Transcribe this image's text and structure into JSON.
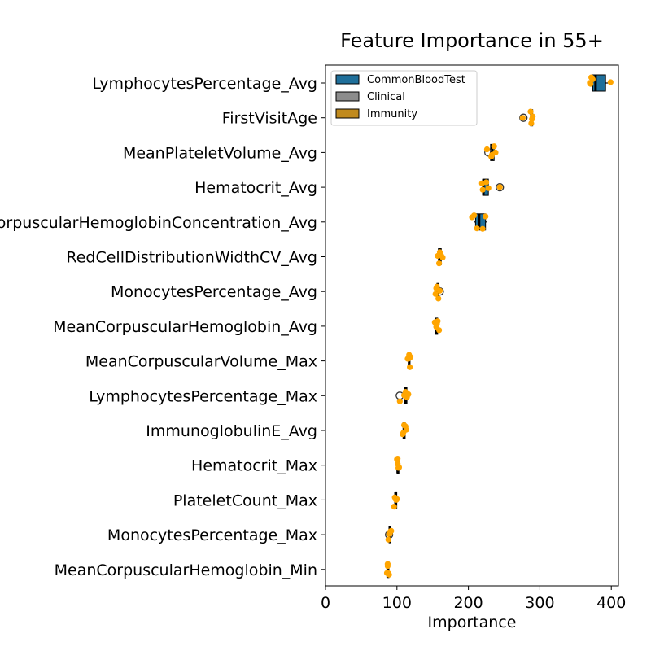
{
  "chart_data": {
    "type": "box",
    "title": "Feature Importance in 55+",
    "xlabel": "Importance",
    "ylabel": "",
    "xlim": [
      0,
      410
    ],
    "xticks": [
      0,
      100,
      200,
      300,
      400
    ],
    "grid": false,
    "legend": {
      "placement": "top-left",
      "entries": [
        {
          "name": "CommonBloodTest",
          "color": "#1f6f9a"
        },
        {
          "name": "Clinical",
          "color": "#8c8c8c"
        },
        {
          "name": "Immunity",
          "color": "#c08a1e"
        }
      ]
    },
    "point_color": "#ffa500",
    "features": [
      {
        "name": "LymphocytesPercentage_Avg",
        "group": "CommonBloodTest",
        "box": [
          372,
          374,
          378,
          392,
          400
        ],
        "points": [
          370,
          371,
          372,
          374,
          399
        ],
        "outliers": []
      },
      {
        "name": "FirstVisitAge",
        "group": "Clinical",
        "box": [
          286,
          287,
          288,
          290,
          291
        ],
        "points": [
          276,
          287,
          288,
          289,
          290
        ],
        "outliers": [
          277
        ]
      },
      {
        "name": "MeanPlateletVolume_Avg",
        "group": "CommonBloodTest",
        "box": [
          230,
          231,
          233,
          236,
          238
        ],
        "points": [
          226,
          232,
          233,
          236,
          238
        ],
        "outliers": [
          228
        ]
      },
      {
        "name": "Hematocrit_Avg",
        "group": "CommonBloodTest",
        "box": [
          219,
          220,
          221,
          228,
          230
        ],
        "points": [
          219,
          220,
          225,
          228,
          244
        ],
        "outliers": [
          244
        ]
      },
      {
        "name": "MeanCorpuscularHemoglobinConcentration_Avg",
        "group": "CommonBloodTest",
        "box": [
          208,
          210,
          215,
          224,
          226
        ],
        "points": [
          205,
          208,
          212,
          220,
          224
        ],
        "outliers": []
      },
      {
        "name": "RedCellDistributionWidthCV_Avg",
        "group": "CommonBloodTest",
        "box": [
          157,
          158,
          160,
          162,
          164
        ],
        "points": [
          157,
          159,
          160,
          162,
          164
        ],
        "outliers": []
      },
      {
        "name": "MonocytesPercentage_Avg",
        "group": "CommonBloodTest",
        "box": [
          155,
          156,
          157,
          158,
          160
        ],
        "points": [
          154,
          155,
          156,
          158,
          160
        ],
        "outliers": [
          160
        ]
      },
      {
        "name": "MeanCorpuscularHemoglobin_Avg",
        "group": "CommonBloodTest",
        "box": [
          153,
          154,
          155,
          157,
          159
        ],
        "points": [
          153,
          155,
          156,
          157,
          159
        ],
        "outliers": []
      },
      {
        "name": "MeanCorpuscularVolume_Max",
        "group": "CommonBloodTest",
        "box": [
          115,
          116,
          117,
          118,
          119
        ],
        "points": [
          115,
          116,
          117,
          118,
          119
        ],
        "outliers": []
      },
      {
        "name": "LymphocytesPercentage_Max",
        "group": "CommonBloodTest",
        "box": [
          110,
          111,
          112,
          114,
          116
        ],
        "points": [
          104,
          110,
          112,
          114,
          116
        ],
        "outliers": [
          104
        ]
      },
      {
        "name": "ImmunoglobulinE_Avg",
        "group": "Immunity",
        "box": [
          108,
          108.5,
          110,
          111.5,
          113
        ],
        "points": [
          108,
          109,
          110,
          112,
          113
        ],
        "outliers": []
      },
      {
        "name": "Hematocrit_Max",
        "group": "CommonBloodTest",
        "box": [
          100,
          100.5,
          101,
          101.5,
          102
        ],
        "points": [
          100,
          101,
          101,
          102,
          103
        ],
        "outliers": []
      },
      {
        "name": "PlateletCount_Max",
        "group": "CommonBloodTest",
        "box": [
          97,
          97.5,
          98,
          99,
          100
        ],
        "points": [
          96,
          97,
          98,
          99,
          100
        ],
        "outliers": []
      },
      {
        "name": "MonocytesPercentage_Max",
        "group": "CommonBloodTest",
        "box": [
          88,
          89,
          90,
          91,
          92
        ],
        "points": [
          88,
          89,
          90,
          91,
          92
        ],
        "outliers": [
          89
        ]
      },
      {
        "name": "MeanCorpuscularHemoglobin_Min",
        "group": "CommonBloodTest",
        "box": [
          86,
          86.5,
          87,
          88,
          89
        ],
        "points": [
          86,
          87,
          87,
          88,
          89
        ],
        "outliers": []
      }
    ]
  }
}
